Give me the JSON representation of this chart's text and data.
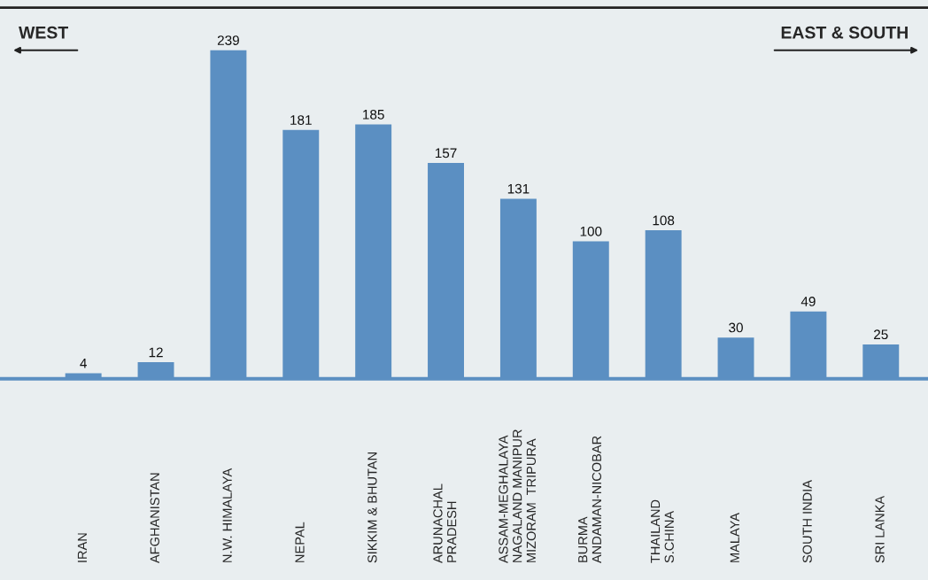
{
  "chart_data": {
    "type": "bar",
    "categories": [
      "IRAN",
      "AFGHANISTAN",
      "N.W. HIMALAYA",
      "NEPAL",
      "SIKKIM & BHUTAN",
      "ARUNACHAL\nPRADESH",
      "ASSAM-MEGHALAYA\nNAGALAND MANIPUR\nMIZORAM  TRIPURA",
      "BURMA\nANDAMAN-NICOBAR",
      "THAILAND\nS.CHINA",
      "MALAYA",
      "SOUTH INDIA",
      "SRI LANKA"
    ],
    "values": [
      4,
      12,
      239,
      181,
      185,
      157,
      131,
      100,
      108,
      30,
      49,
      25
    ],
    "color": "#5b8fc2",
    "data_labels": true,
    "annotations": [
      "WEST",
      "EAST & SOUTH"
    ],
    "grid": false,
    "legend": false
  }
}
